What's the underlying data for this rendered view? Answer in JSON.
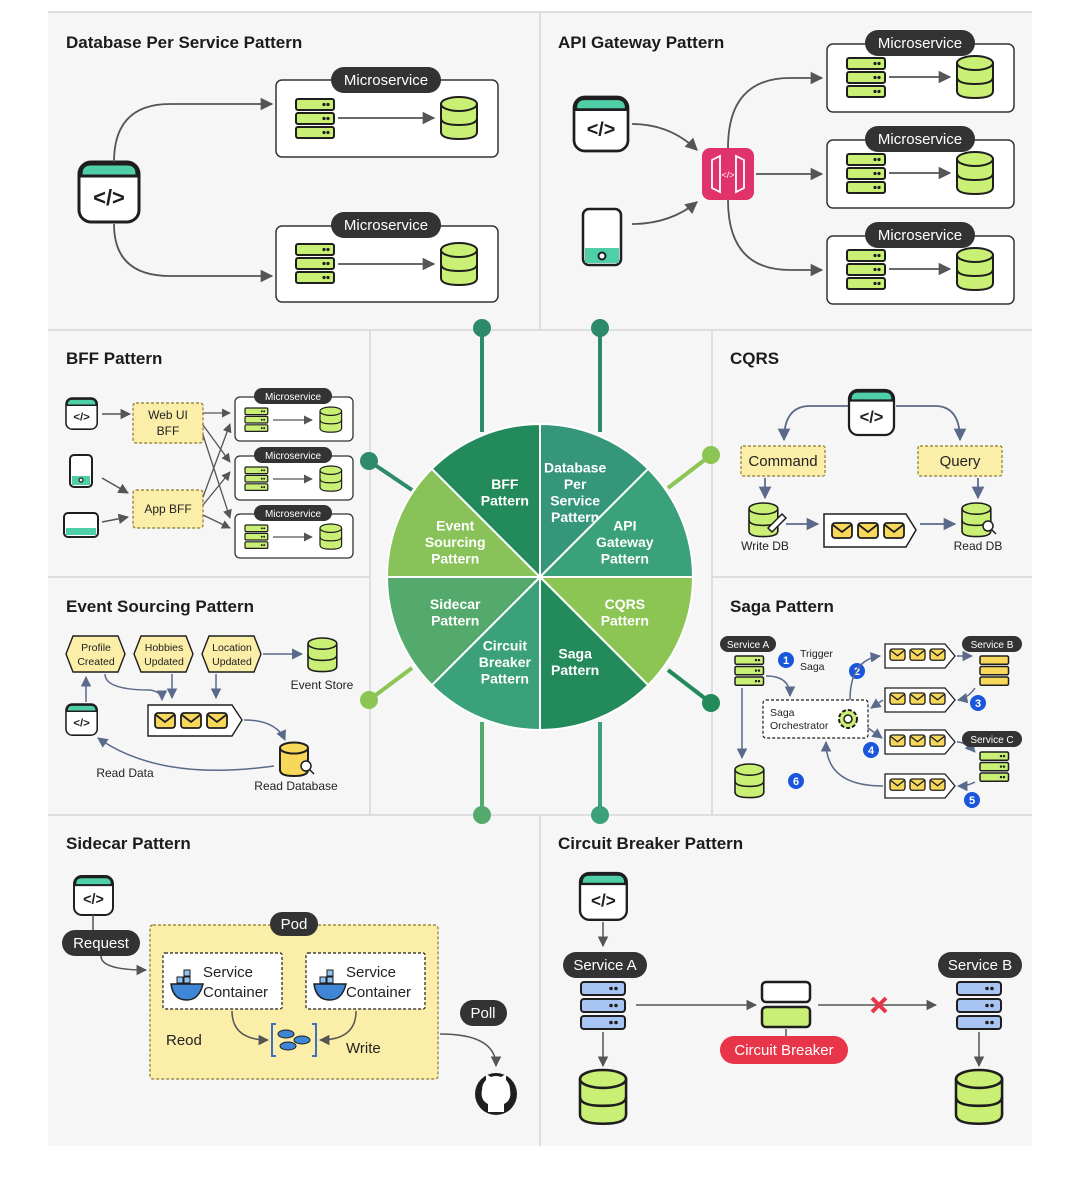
{
  "colors": {
    "panel_bg": "#f6f6f6",
    "border": "#d5d5d5",
    "green_dark": "#2e8b6a",
    "green_light": "#9bcf5a",
    "pill": "#333333",
    "accent_red": "#e8354a",
    "note_yellow": "#fbeea8",
    "db_green": "#c9ef74",
    "msg_yellow": "#f8d85a",
    "blue_badge": "#1a56db"
  },
  "panels": {
    "db_per_service": {
      "title": "Database Per Service Pattern",
      "microservice": "Microservice"
    },
    "api_gateway": {
      "title": "API Gateway Pattern",
      "microservice": "Microservice"
    },
    "bff": {
      "title": "BFF Pattern",
      "web_ui_bff": [
        "Web UI",
        "BFF"
      ],
      "app_bff": "App BFF",
      "microservice": "Microservice"
    },
    "cqrs": {
      "title": "CQRS",
      "command": "Command",
      "query": "Query",
      "write_db": "Write DB",
      "read_db": "Read DB"
    },
    "event_sourcing": {
      "title": "Event Sourcing Pattern",
      "events": [
        [
          "Profile",
          "Created"
        ],
        [
          "Hobbies",
          "Updated"
        ],
        [
          "Location",
          "Updated"
        ]
      ],
      "event_store": "Event Store",
      "read_data": "Read Data",
      "read_database": "Read Database"
    },
    "saga": {
      "title": "Saga Pattern",
      "service_a": "Service A",
      "service_b": "Service B",
      "service_c": "Service C",
      "trigger": [
        "Trigger",
        "Saga"
      ],
      "orchestrator": [
        "Saga",
        "Orchestrator"
      ],
      "steps": [
        "1",
        "2",
        "3",
        "4",
        "5",
        "6"
      ]
    },
    "sidecar": {
      "title": "Sidecar Pattern",
      "request": "Request",
      "pod": "Pod",
      "service_container": [
        "Service",
        "Container"
      ],
      "read": "Reod",
      "write": "Write",
      "poll": "Poll"
    },
    "circuit_breaker": {
      "title": "Circuit Breaker Pattern",
      "service_a": "Service A",
      "service_b": "Service B",
      "breaker": "Circuit Breaker"
    }
  },
  "wheel": {
    "segments": [
      {
        "lines": [
          "Database",
          "Per",
          "Service",
          "Pattern"
        ],
        "color": "#35967a"
      },
      {
        "lines": [
          "API",
          "Gateway",
          "Pattern"
        ],
        "color": "#3aa17a"
      },
      {
        "lines": [
          "CQRS",
          "Pattern"
        ],
        "color": "#8cc554"
      },
      {
        "lines": [
          "Saga",
          "Pattern"
        ],
        "color": "#238a5c"
      },
      {
        "lines": [
          "Circuit",
          "Breaker",
          "Pattern"
        ],
        "color": "#3aa17a"
      },
      {
        "lines": [
          "Sidecar",
          "Pattern"
        ],
        "color": "#53aa6c"
      },
      {
        "lines": [
          "Event",
          "Sourcing",
          "Pattern"
        ],
        "color": "#88c258"
      },
      {
        "lines": [
          "BFF",
          "Pattern"
        ],
        "color": "#238a5c"
      }
    ]
  }
}
